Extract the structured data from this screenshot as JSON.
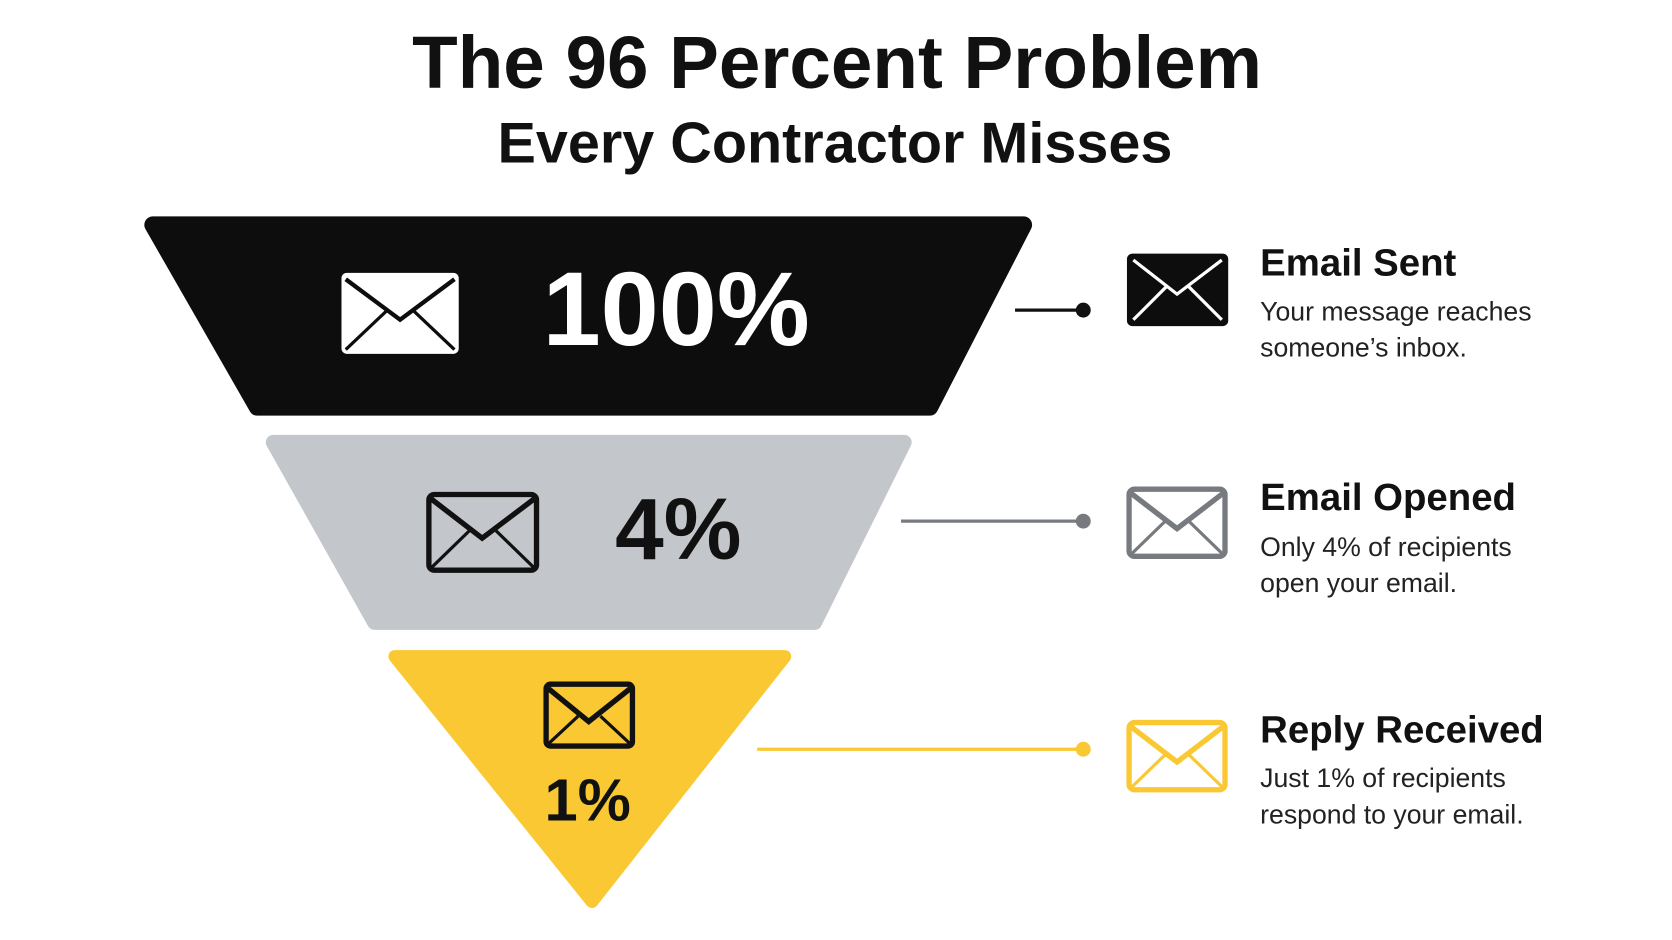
{
  "header": {
    "title": "The 96 Percent Problem",
    "subtitle": "Every Contractor Misses"
  },
  "stages": [
    {
      "value": "100%",
      "title": "Email Sent",
      "description": [
        "Your message reaches",
        "someone’s inbox."
      ]
    },
    {
      "value": "4%",
      "title": "Email Opened",
      "description": [
        "Only 4% of recipients",
        "open your email."
      ]
    },
    {
      "value": "1%",
      "title": "Reply Received",
      "description": [
        "Just 1% of recipients",
        "respond to your email."
      ]
    }
  ]
}
